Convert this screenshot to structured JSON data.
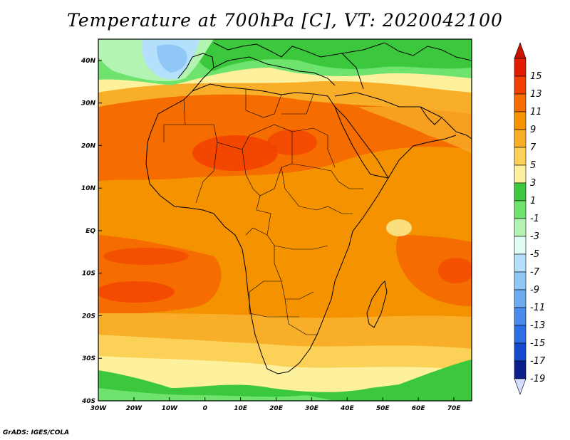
{
  "title": "Temperature at 700hPa [C], VT: 2020042100",
  "footer": "GrADS: IGES/COLA",
  "map": {
    "lon_range": [
      -30,
      75
    ],
    "lat_range": [
      -40,
      45
    ],
    "lon_ticks": [
      {
        "value": -30,
        "label": "30W"
      },
      {
        "value": -20,
        "label": "20W"
      },
      {
        "value": -10,
        "label": "10W"
      },
      {
        "value": 0,
        "label": "0"
      },
      {
        "value": 10,
        "label": "10E"
      },
      {
        "value": 20,
        "label": "20E"
      },
      {
        "value": 30,
        "label": "30E"
      },
      {
        "value": 40,
        "label": "40E"
      },
      {
        "value": 50,
        "label": "50E"
      },
      {
        "value": 60,
        "label": "60E"
      },
      {
        "value": 70,
        "label": "70E"
      }
    ],
    "lat_ticks": [
      {
        "value": 40,
        "label": "40N"
      },
      {
        "value": 30,
        "label": "30N"
      },
      {
        "value": 20,
        "label": "20N"
      },
      {
        "value": 10,
        "label": "10N"
      },
      {
        "value": 0,
        "label": "EQ"
      },
      {
        "value": -10,
        "label": "10S"
      },
      {
        "value": -20,
        "label": "20S"
      },
      {
        "value": -30,
        "label": "30S"
      },
      {
        "value": -40,
        "label": "40S"
      }
    ]
  },
  "colorbar": {
    "levels": [
      {
        "label": "15",
        "color": "#e11c00"
      },
      {
        "label": "13",
        "color": "#f23f00"
      },
      {
        "label": "11",
        "color": "#f56c00"
      },
      {
        "label": "9",
        "color": "#f59200"
      },
      {
        "label": "7",
        "color": "#f8ae28"
      },
      {
        "label": "5",
        "color": "#fbd257"
      },
      {
        "label": "3",
        "color": "#fdf19d"
      },
      {
        "label": "1",
        "color": "#3cc83c"
      },
      {
        "label": "-1",
        "color": "#6ee36e"
      },
      {
        "label": "-3",
        "color": "#b3f4b3"
      },
      {
        "label": "-5",
        "color": "#e1fbf5"
      },
      {
        "label": "-7",
        "color": "#b4e0fb"
      },
      {
        "label": "-9",
        "color": "#8fc7f7"
      },
      {
        "label": "-11",
        "color": "#6aabf2"
      },
      {
        "label": "-13",
        "color": "#4a8ced"
      },
      {
        "label": "-15",
        "color": "#2c6ee6"
      },
      {
        "label": "-17",
        "color": "#154ad0"
      },
      {
        "label": "-19",
        "color": "#0a1e8c"
      }
    ],
    "top_arrow_color": "#c81400",
    "bottom_arrow_color": "#d4dcff"
  }
}
